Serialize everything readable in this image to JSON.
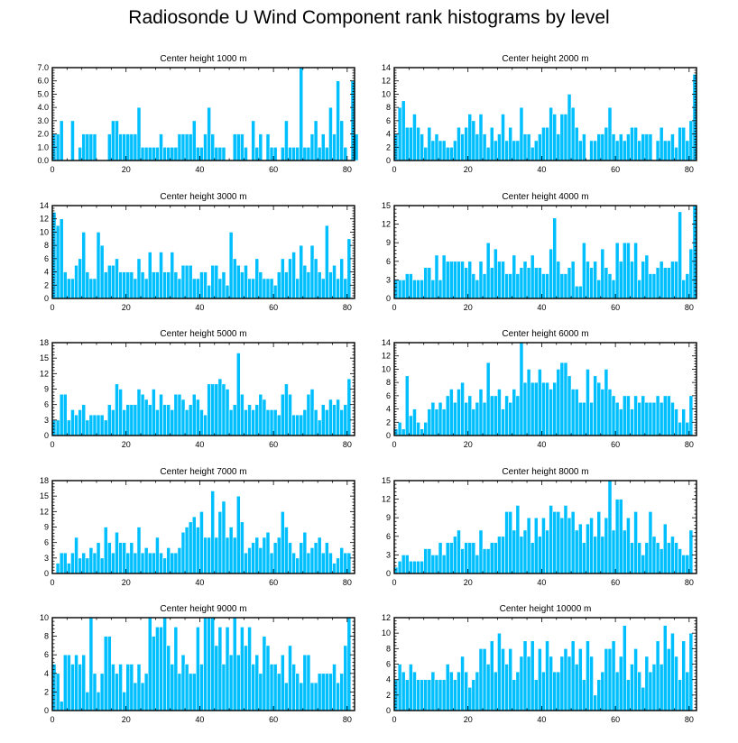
{
  "title": "Radiosonde U Wind Component rank histograms by level",
  "colors": {
    "bar": "#00bfff",
    "bar_edge": "#ffffff",
    "axis": "#000000"
  },
  "chart_data": [
    {
      "type": "bar",
      "title": "Center height 1000 m",
      "ylim": [
        0,
        7
      ],
      "yticks": [
        "0.0",
        "1.0",
        "2.0",
        "3.0",
        "4.0",
        "5.0",
        "6.0",
        "7.0"
      ],
      "ytick_values": [
        0,
        1,
        2,
        3,
        4,
        5,
        6,
        7
      ],
      "xlim": [
        0,
        82
      ],
      "xticks": [
        "0",
        "20",
        "40",
        "60",
        "80"
      ],
      "xtick_values": [
        0,
        20,
        40,
        60,
        80
      ],
      "values": [
        2,
        2,
        3,
        0,
        0,
        3,
        0,
        1,
        2,
        2,
        2,
        2,
        0,
        0,
        0,
        2,
        3,
        3,
        2,
        2,
        2,
        2,
        2,
        4,
        1,
        1,
        1,
        1,
        1,
        2,
        1,
        1,
        1,
        1,
        2,
        2,
        2,
        2,
        3,
        1,
        1,
        2,
        4,
        2,
        1,
        1,
        1,
        0,
        0,
        2,
        2,
        2,
        1,
        0,
        3,
        1,
        2,
        0,
        2,
        1,
        1,
        0,
        1,
        3,
        1,
        1,
        1,
        7,
        1,
        1,
        2,
        3,
        1,
        2,
        1,
        4,
        2,
        6,
        3,
        1,
        0,
        6,
        2
      ]
    },
    {
      "type": "bar",
      "title": "Center height 2000 m",
      "ylim": [
        0,
        14
      ],
      "yticks": [
        "0",
        "2",
        "4",
        "6",
        "8",
        "10",
        "12",
        "14"
      ],
      "ytick_values": [
        0,
        2,
        4,
        6,
        8,
        10,
        12,
        14
      ],
      "xlim": [
        0,
        82
      ],
      "xticks": [
        "0",
        "20",
        "40",
        "60",
        "80"
      ],
      "xtick_values": [
        0,
        20,
        40,
        60,
        80
      ],
      "values": [
        4,
        8,
        9,
        5,
        5,
        7,
        5,
        4,
        2,
        5,
        3,
        4,
        3,
        3,
        2,
        2,
        3,
        5,
        4,
        5,
        7,
        6,
        4,
        7,
        4,
        2,
        5,
        3,
        4,
        7,
        3,
        5,
        3,
        3,
        8,
        4,
        4,
        2,
        3,
        4,
        5,
        5,
        8,
        7,
        4,
        7,
        7,
        10,
        8,
        5,
        3,
        4,
        0,
        3,
        3,
        4,
        4,
        5,
        8,
        4,
        3,
        4,
        3,
        4,
        5,
        5,
        3,
        4,
        4,
        4,
        0,
        3,
        5,
        3,
        3,
        4,
        2,
        5,
        5,
        3,
        6,
        13
      ]
    },
    {
      "type": "bar",
      "title": "Center height 3000 m",
      "ylim": [
        0,
        14
      ],
      "yticks": [
        "0",
        "2",
        "4",
        "6",
        "8",
        "10",
        "12",
        "14"
      ],
      "ytick_values": [
        0,
        2,
        4,
        6,
        8,
        10,
        12,
        14
      ],
      "xlim": [
        0,
        82
      ],
      "xticks": [
        "0",
        "20",
        "40",
        "60",
        "80"
      ],
      "xtick_values": [
        0,
        20,
        40,
        60,
        80
      ],
      "values": [
        13,
        11,
        12,
        4,
        3,
        3,
        5,
        6,
        10,
        4,
        3,
        3,
        10,
        8,
        4,
        5,
        5,
        6,
        4,
        4,
        4,
        4,
        3,
        6,
        4,
        3,
        7,
        4,
        4,
        7,
        4,
        4,
        7,
        4,
        3,
        5,
        5,
        5,
        3,
        3,
        4,
        4,
        2,
        5,
        5,
        3,
        4,
        2,
        10,
        6,
        5,
        4,
        5,
        3,
        3,
        6,
        4,
        3,
        3,
        3,
        2,
        4,
        6,
        4,
        6,
        7,
        3,
        8,
        5,
        4,
        8,
        6,
        4,
        3,
        11,
        4,
        5,
        3,
        6,
        3,
        9
      ]
    },
    {
      "type": "bar",
      "title": "Center height 4000 m",
      "ylim": [
        0,
        15
      ],
      "yticks": [
        "0",
        "3",
        "6",
        "9",
        "12",
        "15"
      ],
      "ytick_values": [
        0,
        3,
        6,
        9,
        12,
        15
      ],
      "xlim": [
        0,
        82
      ],
      "xticks": [
        "0",
        "20",
        "40",
        "60",
        "80"
      ],
      "xtick_values": [
        0,
        20,
        40,
        60,
        80
      ],
      "values": [
        3,
        3,
        3,
        4,
        4,
        3,
        3,
        3,
        5,
        5,
        3,
        7,
        3,
        7,
        6,
        6,
        6,
        6,
        6,
        5,
        6,
        4,
        3,
        6,
        4,
        9,
        5,
        8,
        6,
        6,
        4,
        4,
        7,
        4,
        5,
        6,
        5,
        7,
        5,
        5,
        4,
        4,
        8,
        13,
        6,
        4,
        4,
        5,
        6,
        2,
        2,
        9,
        6,
        5,
        6,
        3,
        8,
        5,
        4,
        3,
        9,
        6,
        9,
        9,
        6,
        9,
        3,
        6,
        7,
        4,
        4,
        5,
        6,
        5,
        5,
        6,
        6,
        14,
        3,
        4,
        8,
        15
      ]
    },
    {
      "type": "bar",
      "title": "Center height 5000 m",
      "ylim": [
        0,
        18
      ],
      "yticks": [
        "0",
        "3",
        "6",
        "9",
        "12",
        "15",
        "18"
      ],
      "ytick_values": [
        0,
        3,
        6,
        9,
        12,
        15,
        18
      ],
      "xlim": [
        0,
        82
      ],
      "xticks": [
        "0",
        "20",
        "40",
        "60",
        "80"
      ],
      "xtick_values": [
        0,
        20,
        40,
        60,
        80
      ],
      "values": [
        3,
        3,
        8,
        8,
        3,
        5,
        4,
        5,
        6,
        3,
        4,
        4,
        4,
        4,
        3,
        6,
        5,
        10,
        9,
        5,
        6,
        6,
        6,
        9,
        8,
        7,
        6,
        9,
        5,
        8,
        6,
        6,
        5,
        8,
        8,
        7,
        5,
        6,
        8,
        7,
        5,
        4,
        10,
        10,
        10,
        11,
        10,
        9,
        5,
        6,
        16,
        8,
        5,
        6,
        5,
        6,
        8,
        7,
        5,
        5,
        5,
        4,
        8,
        10,
        8,
        4,
        4,
        4,
        5,
        8,
        9,
        5,
        3,
        6,
        5,
        7,
        6,
        7,
        5,
        6,
        11
      ]
    },
    {
      "type": "bar",
      "title": "Center height 6000 m",
      "ylim": [
        0,
        14
      ],
      "yticks": [
        "0",
        "2",
        "4",
        "6",
        "8",
        "10",
        "12",
        "14"
      ],
      "ytick_values": [
        0,
        2,
        4,
        6,
        8,
        10,
        12,
        14
      ],
      "xlim": [
        0,
        82
      ],
      "xticks": [
        "0",
        "20",
        "40",
        "60",
        "80"
      ],
      "xtick_values": [
        0,
        20,
        40,
        60,
        80
      ],
      "values": [
        1,
        2,
        1,
        9,
        3,
        4,
        2,
        1,
        2,
        4,
        5,
        4,
        5,
        4,
        6,
        7,
        5,
        7,
        8,
        5,
        6,
        4,
        5,
        7,
        5,
        11,
        6,
        6,
        7,
        4,
        6,
        5,
        7,
        6,
        14,
        8,
        10,
        8,
        8,
        10,
        8,
        8,
        7,
        8,
        10,
        11,
        11,
        9,
        7,
        7,
        5,
        5,
        10,
        5,
        9,
        8,
        7,
        10,
        7,
        6,
        5,
        4,
        6,
        6,
        4,
        6,
        5,
        6,
        5,
        5,
        5,
        6,
        5,
        6,
        6,
        5,
        4,
        2,
        4,
        2,
        6
      ]
    },
    {
      "type": "bar",
      "title": "Center height 7000 m",
      "ylim": [
        0,
        18
      ],
      "yticks": [
        "0",
        "3",
        "6",
        "9",
        "12",
        "15",
        "18"
      ],
      "ytick_values": [
        0,
        3,
        6,
        9,
        12,
        15,
        18
      ],
      "xlim": [
        0,
        82
      ],
      "xticks": [
        "0",
        "20",
        "40",
        "60",
        "80"
      ],
      "xtick_values": [
        0,
        20,
        40,
        60,
        80
      ],
      "values": [
        0,
        2,
        4,
        4,
        2,
        4,
        7,
        3,
        4,
        3,
        5,
        4,
        6,
        3,
        9,
        6,
        4,
        8,
        6,
        6,
        4,
        6,
        4,
        9,
        4,
        5,
        4,
        4,
        7,
        4,
        3,
        5,
        4,
        4,
        5,
        8,
        9,
        10,
        11,
        9,
        12,
        7,
        7,
        16,
        7,
        12,
        14,
        7,
        9,
        7,
        15,
        10,
        4,
        5,
        6,
        7,
        5,
        7,
        8,
        4,
        6,
        7,
        12,
        9,
        6,
        4,
        3,
        6,
        8,
        4,
        5,
        6,
        7,
        4,
        6,
        4,
        2,
        3,
        5,
        4,
        4
      ]
    },
    {
      "type": "bar",
      "title": "Center height 8000 m",
      "ylim": [
        0,
        15
      ],
      "yticks": [
        "0",
        "3",
        "6",
        "9",
        "12",
        "15"
      ],
      "ytick_values": [
        0,
        3,
        6,
        9,
        12,
        15
      ],
      "xlim": [
        0,
        82
      ],
      "xticks": [
        "0",
        "20",
        "40",
        "60",
        "80"
      ],
      "xtick_values": [
        0,
        20,
        40,
        60,
        80
      ],
      "values": [
        1,
        2,
        3,
        3,
        2,
        2,
        2,
        2,
        4,
        4,
        3,
        3,
        5,
        3,
        5,
        5,
        6,
        7,
        4,
        5,
        5,
        5,
        3,
        7,
        4,
        4,
        5,
        5,
        6,
        6,
        10,
        10,
        7,
        11,
        6,
        7,
        9,
        5,
        9,
        6,
        9,
        7,
        11,
        10,
        10,
        9,
        11,
        9,
        10,
        7,
        8,
        5,
        8,
        9,
        6,
        10,
        6,
        9,
        15,
        7,
        12,
        12,
        7,
        9,
        5,
        10,
        5,
        3,
        5,
        10,
        6,
        5,
        4,
        8,
        5,
        6,
        5,
        4,
        3,
        3,
        7
      ]
    },
    {
      "type": "bar",
      "title": "Center height 9000 m",
      "ylim": [
        0,
        10
      ],
      "yticks": [
        "0",
        "2",
        "4",
        "6",
        "8",
        "10"
      ],
      "ytick_values": [
        0,
        2,
        4,
        6,
        8,
        10
      ],
      "xlim": [
        0,
        82
      ],
      "xticks": [
        "0",
        "20",
        "40",
        "60",
        "80"
      ],
      "xtick_values": [
        0,
        20,
        40,
        60,
        80
      ],
      "values": [
        5,
        4,
        1,
        6,
        6,
        5,
        6,
        5,
        6,
        2,
        10,
        4,
        2,
        4,
        8,
        8,
        5,
        4,
        5,
        2,
        5,
        5,
        3,
        5,
        3,
        4,
        10,
        8,
        9,
        9,
        10,
        7,
        5,
        9,
        4,
        6,
        5,
        4,
        4,
        9,
        5,
        10,
        10,
        10,
        7,
        9,
        5,
        9,
        6,
        10,
        6,
        9,
        7,
        9,
        5,
        6,
        4,
        8,
        7,
        5,
        5,
        4,
        6,
        3,
        7,
        5,
        4,
        3,
        6,
        6,
        3,
        3,
        4,
        4,
        4,
        4,
        5,
        3,
        4,
        7,
        10
      ]
    },
    {
      "type": "bar",
      "title": "Center height 10000 m",
      "ylim": [
        0,
        12
      ],
      "yticks": [
        "0",
        "2",
        "4",
        "6",
        "8",
        "10",
        "12"
      ],
      "ytick_values": [
        0,
        2,
        4,
        6,
        8,
        10,
        12
      ],
      "xlim": [
        0,
        82
      ],
      "xticks": [
        "0",
        "20",
        "40",
        "60",
        "80"
      ],
      "xtick_values": [
        0,
        20,
        40,
        60,
        80
      ],
      "values": [
        4,
        6,
        5,
        4,
        6,
        5,
        4,
        4,
        4,
        4,
        5,
        4,
        4,
        4,
        6,
        5,
        4,
        5,
        7,
        5,
        3,
        4,
        5,
        8,
        8,
        6,
        9,
        5,
        10,
        8,
        6,
        8,
        4,
        5,
        7,
        9,
        7,
        9,
        4,
        8,
        5,
        9,
        7,
        5,
        5,
        7,
        8,
        7,
        9,
        6,
        8,
        4,
        9,
        7,
        2,
        4,
        5,
        8,
        8,
        9,
        5,
        7,
        11,
        4,
        6,
        8,
        5,
        3,
        7,
        5,
        6,
        9,
        6,
        11,
        8,
        10,
        7,
        4,
        9,
        5,
        10
      ]
    }
  ]
}
